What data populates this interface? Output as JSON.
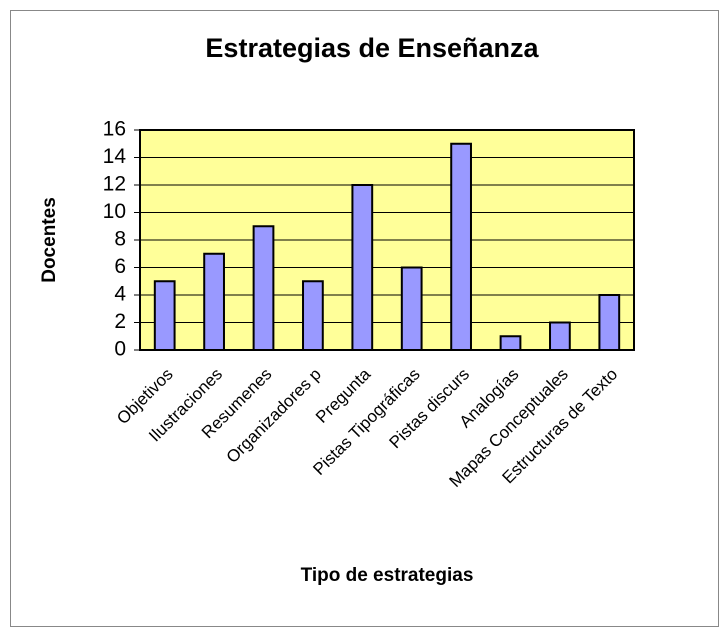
{
  "chart_data": {
    "type": "bar",
    "title": "Estrategias de Enseñanza",
    "x_label": "Tipo de estrategias",
    "y_label": "Docentes",
    "categories": [
      "Objetivos",
      "Ilustraciones",
      "Resumenes",
      "Organizadores p",
      "Pregunta",
      "Pistas Tipográficas",
      "Pistas discurs",
      "Analogías",
      "Mapas Conceptuales",
      "Estructuras de Texto"
    ],
    "values": [
      5,
      7,
      9,
      5,
      12,
      6,
      15,
      1,
      2,
      4
    ],
    "color": "#9999ff",
    "background": "#ffff99",
    "ylim": [
      0,
      16
    ],
    "yticks": [
      0,
      2,
      4,
      6,
      8,
      10,
      12,
      14,
      16
    ],
    "grid": true
  }
}
